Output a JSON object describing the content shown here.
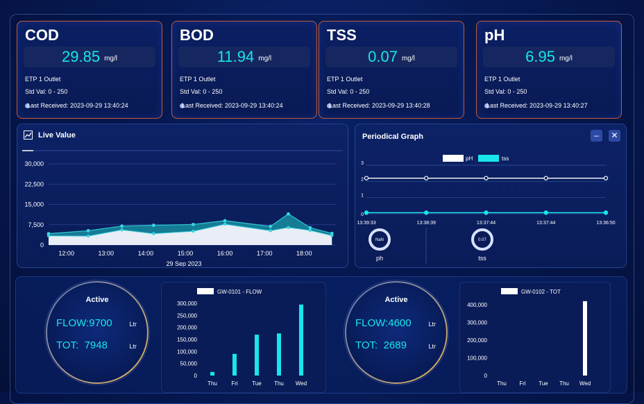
{
  "cards": [
    {
      "title": "COD",
      "value": "29.85",
      "unit": "mg/l",
      "location": "ETP 1 Outlet",
      "std": "Std Val: 0 - 250",
      "last": "Last Received: 2023-09-29 13:40:24"
    },
    {
      "title": "BOD",
      "value": "11.94",
      "unit": "mg/l",
      "location": "ETP 1 Outlet",
      "std": "Std Val: 0 - 250",
      "last": "Last Received: 2023-09-29 13:40:24"
    },
    {
      "title": "TSS",
      "value": "0.07",
      "unit": "mg/l",
      "location": "ETP 1 Outlet",
      "std": "Std Val: 0 - 250",
      "last": "Last Received: 2023-09-29 13:40:28"
    },
    {
      "title": "pH",
      "value": "6.95",
      "unit": "mg/l",
      "location": "ETP 1 Outlet",
      "std": "Std Val: 0 - 250",
      "last": "Last Received: 2023-09-29 13:40:27"
    }
  ],
  "live": {
    "title": "Live Value",
    "date_label": "29  Sep  2023"
  },
  "periodical": {
    "title": "Periodical Graph",
    "legend": [
      "pH",
      "tss"
    ],
    "y_ticks": [
      "3",
      "2",
      "1",
      "0"
    ],
    "x_ticks": [
      "13:39:33",
      "13:38:39",
      "13:37:44",
      "13:37:44",
      "13:36:50"
    ],
    "donuts": [
      {
        "value": "NaN",
        "label": "ph"
      },
      {
        "value": "0.07",
        "label": "tss"
      }
    ]
  },
  "gauges": [
    {
      "status": "Active",
      "flow_label": "FLOW:",
      "flow_value": "9700",
      "flow_unit": "Ltr",
      "tot_label": "TOT:",
      "tot_value": "7948",
      "tot_unit": "Ltr"
    },
    {
      "status": "Active",
      "flow_label": "FLOW:",
      "flow_value": "4600",
      "flow_unit": "Ltr",
      "tot_label": "TOT:",
      "tot_value": "2689",
      "tot_unit": "Ltr"
    }
  ],
  "colors": {
    "accent": "#19e6ea",
    "card_border": "#c45a3a",
    "series_main": "#1a9fb3"
  },
  "chart_data": [
    {
      "type": "area",
      "title": "Live Value",
      "xlabel": "29  Sep  2023",
      "x_ticks": [
        "12:00",
        "13:00",
        "14:00",
        "15:00",
        "16:00",
        "17:00",
        "18:00"
      ],
      "y_ticks": [
        "0",
        "7,500",
        "15,000",
        "22,500",
        "30,000"
      ],
      "ylim": [
        0,
        30000
      ],
      "x_hours": [
        11.55,
        12.55,
        13.4,
        14.2,
        15.2,
        16.0,
        17.15,
        17.6,
        18.15,
        18.7
      ],
      "series": [
        {
          "values": [
            4200,
            5300,
            7000,
            7300,
            7600,
            9000,
            6900,
            11500,
            6400,
            4300
          ]
        },
        {
          "values": [
            3400,
            3300,
            5600,
            4200,
            5100,
            7700,
            5300,
            6500,
            5400,
            3500
          ]
        }
      ]
    },
    {
      "type": "line",
      "title": "Periodical Graph",
      "categories": [
        "13:39:33",
        "13:38:39",
        "13:37:44",
        "13:37:44",
        "13:36:50"
      ],
      "ylim": [
        0,
        3
      ],
      "series": [
        {
          "name": "pH",
          "values": [
            2.2,
            2.2,
            2.2,
            2.2,
            2.2
          ]
        },
        {
          "name": "tss",
          "values": [
            0.07,
            0.07,
            0.07,
            0.07,
            0.07
          ]
        }
      ]
    },
    {
      "type": "bar",
      "legend": "GW-0101 - FLOW",
      "categories": [
        "Thu",
        "Fri",
        "Tue",
        "Thu",
        "Wed"
      ],
      "values": [
        15000,
        90000,
        170000,
        175000,
        295000
      ],
      "y_ticks": [
        "0",
        "50,000",
        "100,000",
        "150,000",
        "200,000",
        "250,000",
        "300,000"
      ],
      "ylim": [
        0,
        300000
      ]
    },
    {
      "type": "bar",
      "legend": "GW-0102 - TOT",
      "categories": [
        "Thu",
        "Fri",
        "Tue",
        "Thu",
        "Wed"
      ],
      "values": [
        0,
        0,
        0,
        0,
        420000
      ],
      "y_ticks": [
        "0",
        "100,000",
        "200,000",
        "300,000",
        "400,000"
      ],
      "ylim": [
        0,
        400000
      ]
    }
  ]
}
